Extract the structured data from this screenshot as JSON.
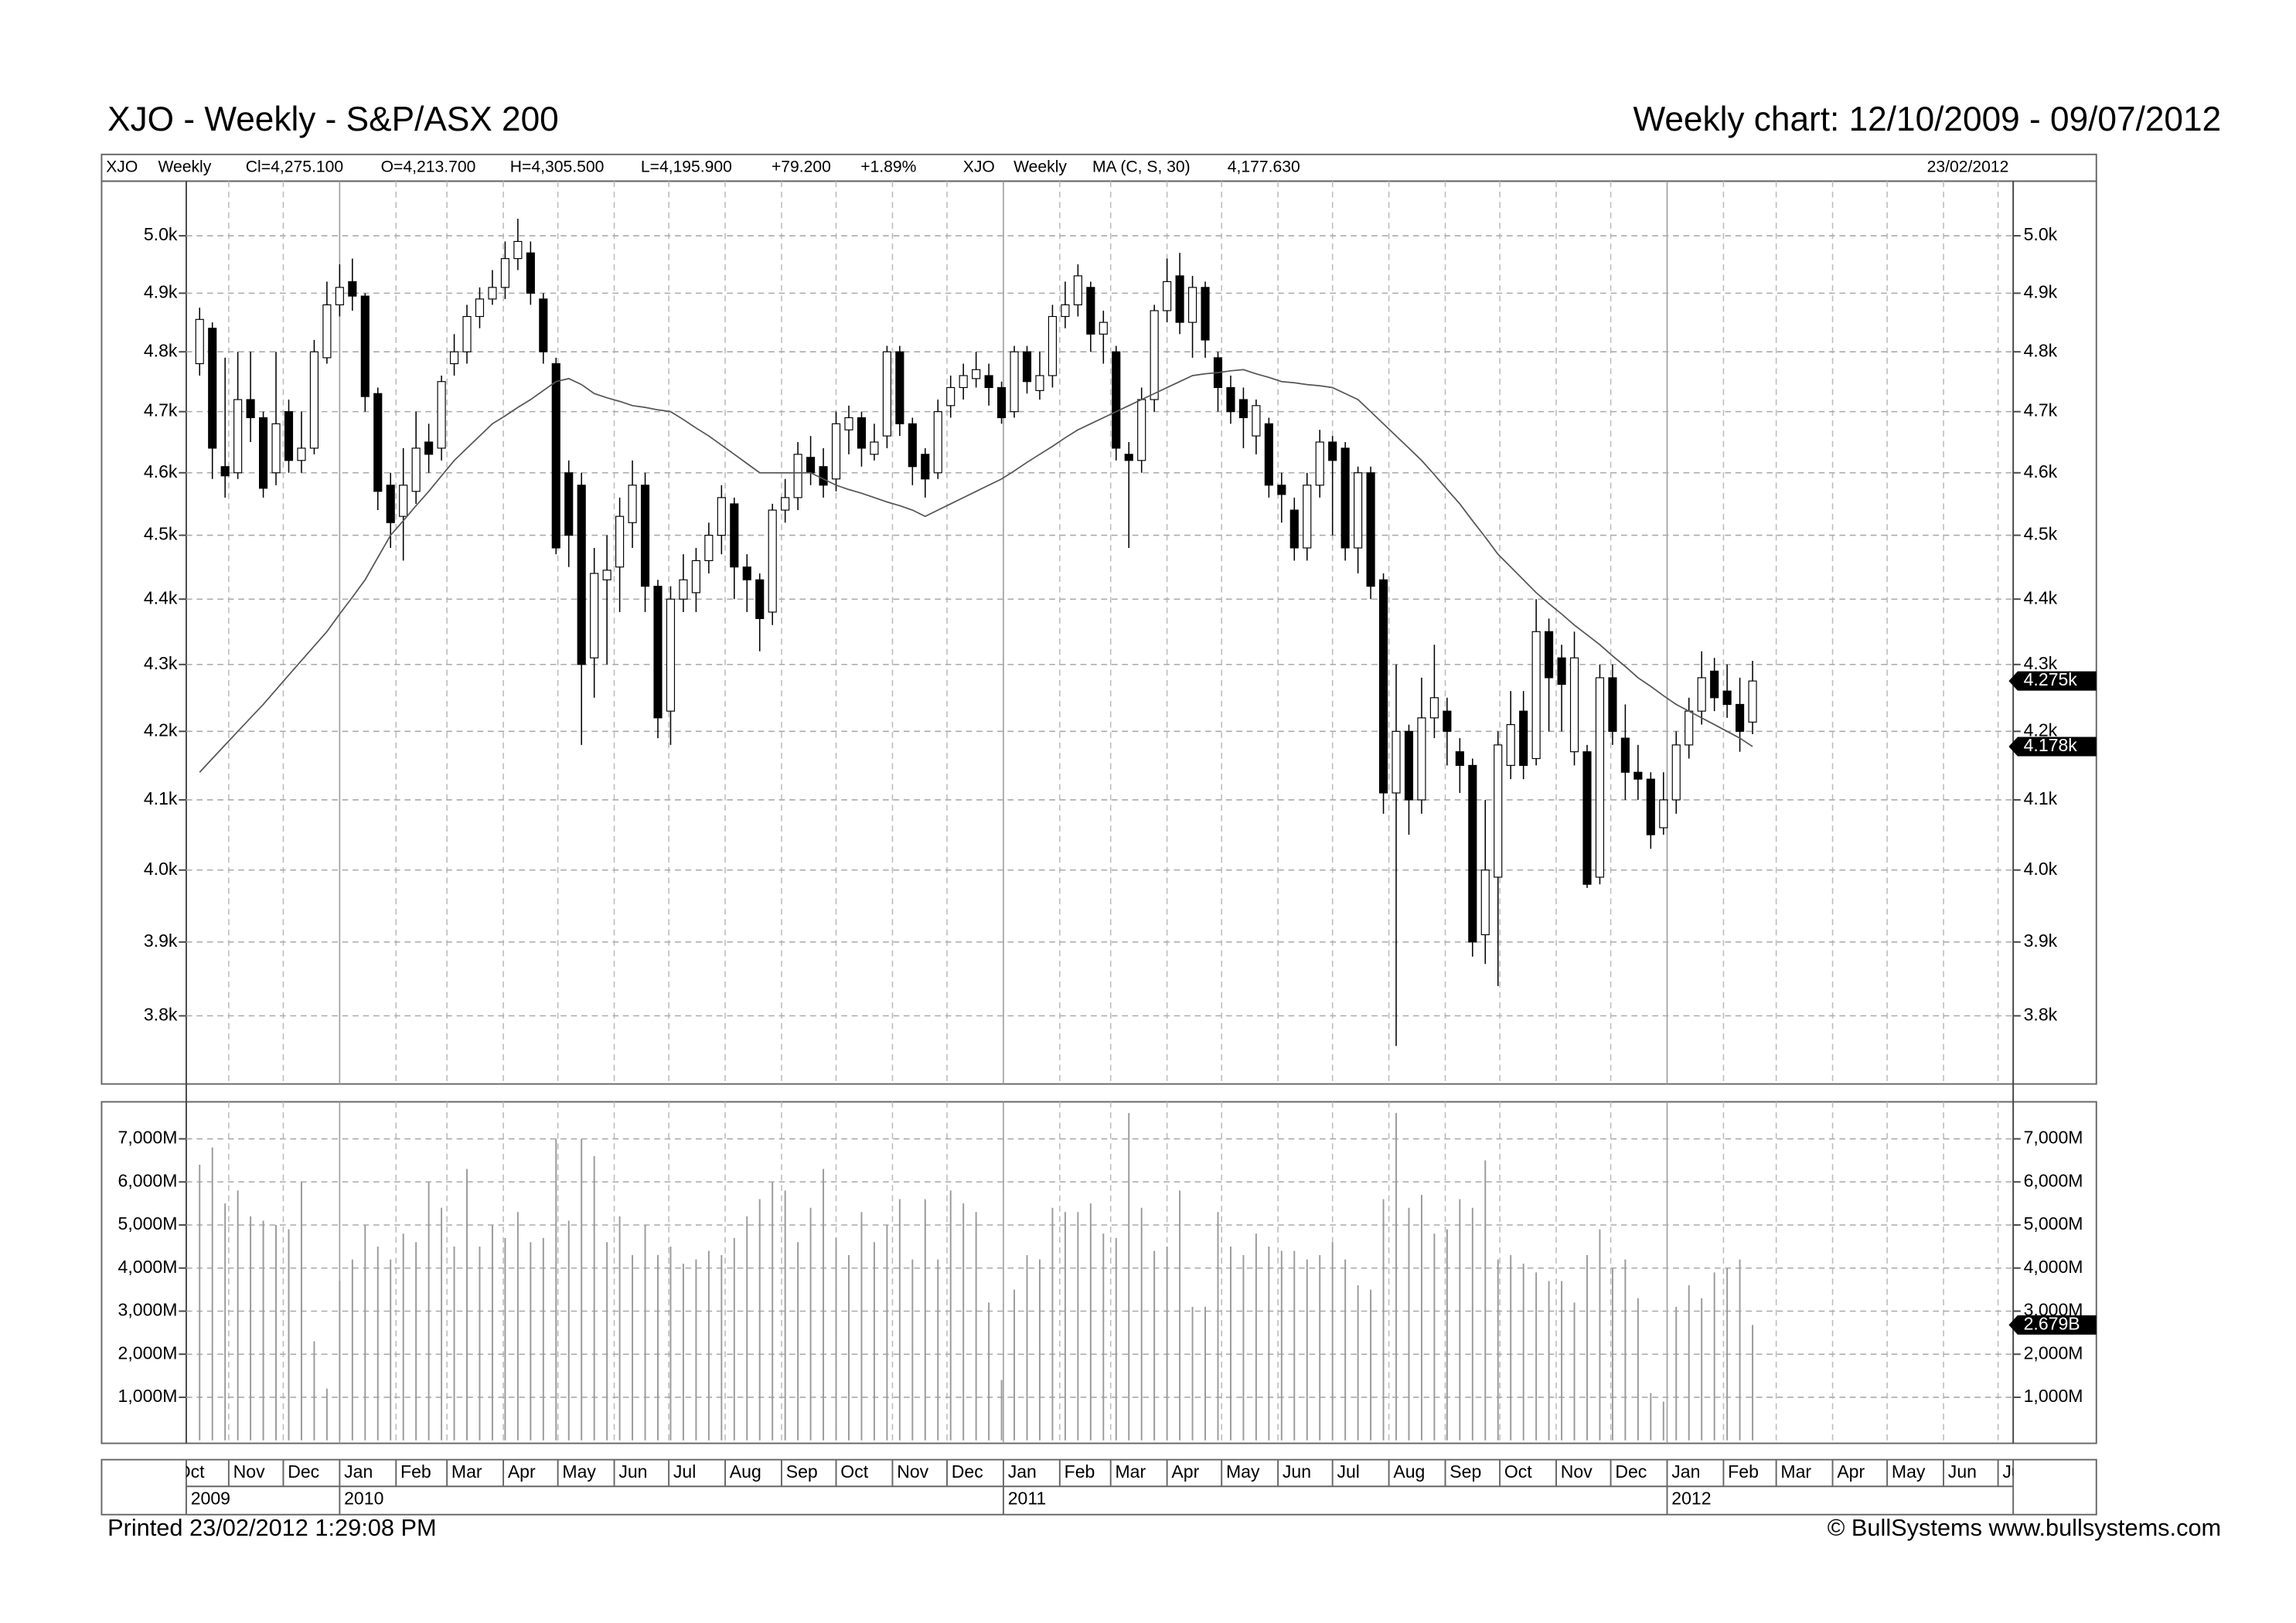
{
  "header": {
    "title": "XJO - Weekly - S&P/ASX 200",
    "subtitle": "Weekly chart: 12/10/2009 - 09/07/2012"
  },
  "info_bar": {
    "items": [
      "XJO",
      "Weekly",
      "Cl=4,275.100",
      "O=4,213.700",
      "H=4,305.500",
      "L=4,195.900",
      "+79.200",
      "+1.89%",
      "XJO",
      "Weekly",
      "MA (C, S, 30)",
      "4,177.630"
    ],
    "date": "23/02/2012"
  },
  "footer": {
    "left": "Printed 23/02/2012 1:29:08 PM",
    "right": "© BullSystems www.bullsystems.com"
  },
  "x_axis": {
    "months": [
      "Oct",
      "Nov",
      "Dec",
      "Jan",
      "Feb",
      "Mar",
      "Apr",
      "May",
      "Jun",
      "Jul",
      "Aug",
      "Sep",
      "Oct",
      "Nov",
      "Dec",
      "Jan",
      "Feb",
      "Mar",
      "Apr",
      "May",
      "Jun",
      "Jul",
      "Aug",
      "Sep",
      "Oct",
      "Nov",
      "Dec",
      "Jan",
      "Feb",
      "Mar",
      "Apr",
      "May",
      "Jun",
      "Jul"
    ],
    "years": [
      "2009",
      "2010",
      "2011",
      "2012"
    ]
  },
  "chart_data": [
    {
      "type": "candlestick",
      "log_scale": true,
      "grid": true,
      "ylim": [
        3710,
        5097
      ],
      "yticks": [
        {
          "value": 5000,
          "label": "5.0k"
        },
        {
          "value": 4900,
          "label": "4.9k"
        },
        {
          "value": 4800,
          "label": "4.8k"
        },
        {
          "value": 4700,
          "label": "4.7k"
        },
        {
          "value": 4600,
          "label": "4.6k"
        },
        {
          "value": 4500,
          "label": "4.5k"
        },
        {
          "value": 4400,
          "label": "4.4k"
        },
        {
          "value": 4300,
          "label": "4.3k"
        },
        {
          "value": 4200,
          "label": "4.2k"
        },
        {
          "value": 4100,
          "label": "4.1k"
        },
        {
          "value": 4000,
          "label": "4.0k"
        },
        {
          "value": 3900,
          "label": "3.9k"
        },
        {
          "value": 3800,
          "label": "3.8k"
        }
      ],
      "up_color": "#ffffff",
      "down_color": "#000000",
      "open": [
        4780,
        4840,
        4610,
        4600,
        4720,
        4690,
        4600,
        4700,
        4620,
        4640,
        4790,
        4880,
        4920,
        4895,
        4730,
        4580,
        4530,
        4570,
        4650,
        4640,
        4780,
        4800,
        4860,
        4890,
        4910,
        4960,
        4970,
        4890,
        4780,
        4600,
        4580,
        4310,
        4430,
        4450,
        4520,
        4580,
        4420,
        4230,
        4400,
        4410,
        4460,
        4500,
        4550,
        4450,
        4430,
        4380,
        4540,
        4560,
        4625,
        4610,
        4590,
        4670,
        4690,
        4630,
        4660,
        4800,
        4680,
        4630,
        4600,
        4710,
        4740,
        4755,
        4760,
        4740,
        4700,
        4800,
        4735,
        4760,
        4860,
        4880,
        4910,
        4830,
        4800,
        4630,
        4620,
        4720,
        4870,
        4930,
        4850,
        4910,
        4790,
        4740,
        4720,
        4660,
        4680,
        4580,
        4540,
        4480,
        4580,
        4650,
        4640,
        4480,
        4600,
        4430,
        4110,
        4200,
        4100,
        4220,
        4230,
        4170,
        4150,
        3910,
        3990,
        4150,
        4230,
        4160,
        4350,
        4310,
        4170,
        4170,
        3990,
        4280,
        4190,
        4140,
        4130,
        4060,
        4100,
        4180,
        4230,
        4290,
        4260,
        4240,
        4213.7
      ],
      "high": [
        4875,
        4850,
        4790,
        4800,
        4800,
        4700,
        4800,
        4720,
        4700,
        4820,
        4920,
        4950,
        4960,
        4900,
        4740,
        4600,
        4640,
        4700,
        4680,
        4760,
        4830,
        4880,
        4910,
        4940,
        4990,
        5030,
        4990,
        4900,
        4790,
        4620,
        4600,
        4480,
        4500,
        4560,
        4620,
        4600,
        4430,
        4420,
        4470,
        4480,
        4520,
        4580,
        4560,
        4470,
        4440,
        4550,
        4590,
        4650,
        4660,
        4640,
        4700,
        4710,
        4700,
        4680,
        4810,
        4810,
        4690,
        4640,
        4720,
        4760,
        4780,
        4800,
        4780,
        4750,
        4810,
        4810,
        4800,
        4880,
        4920,
        4950,
        4920,
        4870,
        4810,
        4650,
        4740,
        4880,
        4960,
        4970,
        4930,
        4920,
        4800,
        4760,
        4740,
        4720,
        4690,
        4600,
        4560,
        4600,
        4670,
        4660,
        4650,
        4610,
        4610,
        4440,
        4300,
        4210,
        4280,
        4330,
        4250,
        4190,
        4160,
        4100,
        4200,
        4260,
        4260,
        4400,
        4370,
        4330,
        4350,
        4180,
        4300,
        4300,
        4240,
        4180,
        4140,
        4140,
        4200,
        4250,
        4320,
        4310,
        4300,
        4280,
        4305.5
      ],
      "low": [
        4760,
        4590,
        4560,
        4590,
        4650,
        4560,
        4580,
        4600,
        4600,
        4630,
        4780,
        4860,
        4870,
        4700,
        4540,
        4480,
        4460,
        4550,
        4600,
        4620,
        4760,
        4780,
        4840,
        4880,
        4890,
        4940,
        4880,
        4780,
        4470,
        4450,
        4180,
        4250,
        4300,
        4380,
        4480,
        4380,
        4190,
        4180,
        4380,
        4380,
        4440,
        4470,
        4400,
        4380,
        4320,
        4360,
        4520,
        4540,
        4580,
        4560,
        4570,
        4630,
        4610,
        4620,
        4640,
        4660,
        4580,
        4560,
        4590,
        4690,
        4720,
        4740,
        4710,
        4680,
        4690,
        4730,
        4720,
        4740,
        4840,
        4860,
        4800,
        4780,
        4620,
        4480,
        4600,
        4700,
        4850,
        4830,
        4790,
        4790,
        4700,
        4680,
        4640,
        4630,
        4560,
        4520,
        4460,
        4460,
        4560,
        4500,
        4460,
        4440,
        4400,
        4080,
        3760,
        4050,
        4080,
        4190,
        4150,
        4110,
        3880,
        3870,
        3840,
        4130,
        4130,
        4150,
        4200,
        4200,
        4150,
        3975,
        3980,
        4180,
        4100,
        4100,
        4030,
        4050,
        4080,
        4160,
        4210,
        4230,
        4220,
        4170,
        4195.9
      ],
      "close": [
        4855,
        4640,
        4595,
        4720,
        4690,
        4575,
        4680,
        4620,
        4640,
        4800,
        4880,
        4910,
        4895,
        4725,
        4570,
        4520,
        4580,
        4640,
        4630,
        4750,
        4800,
        4860,
        4890,
        4910,
        4960,
        4990,
        4900,
        4800,
        4480,
        4500,
        4300,
        4440,
        4445,
        4530,
        4580,
        4420,
        4220,
        4400,
        4430,
        4460,
        4500,
        4560,
        4450,
        4430,
        4370,
        4540,
        4560,
        4630,
        4600,
        4580,
        4680,
        4690,
        4640,
        4650,
        4800,
        4680,
        4610,
        4590,
        4700,
        4740,
        4760,
        4770,
        4740,
        4690,
        4800,
        4750,
        4760,
        4860,
        4880,
        4930,
        4830,
        4850,
        4640,
        4620,
        4720,
        4870,
        4920,
        4850,
        4910,
        4820,
        4740,
        4700,
        4690,
        4710,
        4580,
        4565,
        4480,
        4580,
        4650,
        4620,
        4480,
        4600,
        4420,
        4110,
        4200,
        4100,
        4220,
        4250,
        4200,
        4150,
        3900,
        4000,
        4180,
        4210,
        4150,
        4350,
        4280,
        4270,
        4310,
        3980,
        4280,
        4200,
        4140,
        4130,
        4050,
        4100,
        4180,
        4230,
        4280,
        4250,
        4240,
        4200,
        4275.1
      ],
      "ma": {
        "color": "#555555",
        "values": [
          4140,
          4160,
          4180,
          4200,
          4220,
          4240,
          4262,
          4284,
          4306,
          4328,
          4350,
          4377,
          4403,
          4430,
          4465,
          4500,
          4523,
          4547,
          4570,
          4595,
          4620,
          4640,
          4660,
          4680,
          4693,
          4707,
          4720,
          4735,
          4750,
          4755,
          4745,
          4730,
          4723,
          4717,
          4710,
          4707,
          4703,
          4700,
          4687,
          4673,
          4660,
          4645,
          4630,
          4615,
          4600,
          4600,
          4600,
          4600,
          4600,
          4590,
          4580,
          4573,
          4567,
          4560,
          4553,
          4547,
          4540,
          4530,
          4540,
          4550,
          4560,
          4570,
          4580,
          4590,
          4603,
          4617,
          4630,
          4643,
          4657,
          4670,
          4680,
          4690,
          4700,
          4710,
          4720,
          4730,
          4740,
          4750,
          4760,
          4763,
          4765,
          4768,
          4770,
          4763,
          4757,
          4750,
          4748,
          4745,
          4743,
          4740,
          4730,
          4720,
          4700,
          4680,
          4660,
          4640,
          4620,
          4597,
          4573,
          4550,
          4523,
          4497,
          4470,
          4450,
          4430,
          4410,
          4393,
          4377,
          4360,
          4345,
          4330,
          4313,
          4297,
          4280,
          4267,
          4253,
          4240,
          4230,
          4220,
          4210,
          4200,
          4190,
          4177.63
        ]
      },
      "markers": [
        {
          "value": 4275.1,
          "label": "4.275k"
        },
        {
          "value": 4177.63,
          "label": "4.178k"
        }
      ]
    },
    {
      "type": "bar",
      "grid": true,
      "color": "#999999",
      "ylim": [
        0,
        7860
      ],
      "yticks": [
        {
          "value": 7000,
          "label": "7,000M"
        },
        {
          "value": 6000,
          "label": "6,000M"
        },
        {
          "value": 5000,
          "label": "5,000M"
        },
        {
          "value": 4000,
          "label": "4,000M"
        },
        {
          "value": 3000,
          "label": "3,000M"
        },
        {
          "value": 2000,
          "label": "2,000M"
        },
        {
          "value": 1000,
          "label": "1,000M"
        }
      ],
      "values": [
        6400,
        6800,
        5500,
        5800,
        5200,
        5100,
        5000,
        4900,
        6000,
        2300,
        1200,
        3700,
        4200,
        5000,
        4500,
        4200,
        4800,
        4600,
        6000,
        5400,
        4500,
        6300,
        4500,
        5000,
        4700,
        5300,
        4600,
        4700,
        7000,
        5100,
        7000,
        6600,
        4600,
        5200,
        4300,
        5000,
        4300,
        4500,
        4100,
        4200,
        4400,
        4300,
        4700,
        5200,
        5600,
        6000,
        5800,
        4600,
        5400,
        6300,
        4700,
        4300,
        5300,
        4600,
        5000,
        5600,
        4200,
        5600,
        4200,
        5800,
        5500,
        5300,
        3200,
        1400,
        3500,
        4300,
        4200,
        5400,
        5300,
        5300,
        5500,
        4800,
        4700,
        7600,
        5400,
        4400,
        4500,
        5800,
        3100,
        3100,
        5300,
        4500,
        4300,
        4800,
        4500,
        4400,
        4400,
        4200,
        4300,
        4600,
        4200,
        3600,
        3500,
        5600,
        7600,
        5400,
        5700,
        4800,
        4900,
        5600,
        5400,
        6500,
        4200,
        4300,
        4100,
        3900,
        3700,
        3700,
        3200,
        4300,
        4900,
        4000,
        4200,
        3300,
        1100,
        900,
        3100,
        3600,
        3300,
        3900,
        4000,
        4200,
        2679
      ],
      "markers": [
        {
          "value": 2679,
          "label": "2.679B"
        }
      ]
    }
  ]
}
